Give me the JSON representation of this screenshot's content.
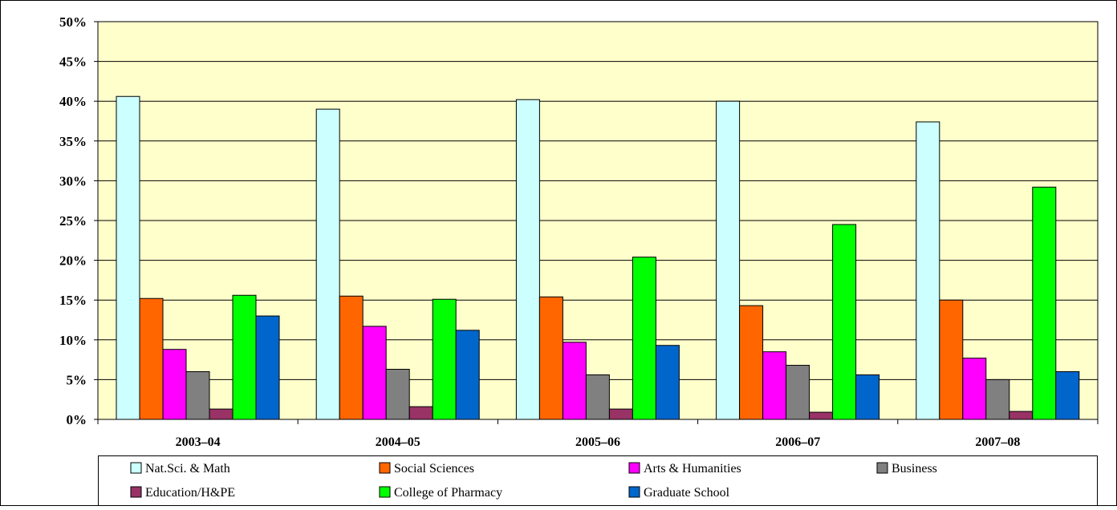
{
  "chart_data": {
    "type": "bar",
    "title": "",
    "xlabel": "",
    "ylabel": "",
    "ylim": [
      0,
      50
    ],
    "y_ticks": [
      "0%",
      "5%",
      "10%",
      "15%",
      "20%",
      "25%",
      "30%",
      "35%",
      "40%",
      "45%",
      "50%"
    ],
    "categories": [
      "2003–04",
      "2004–05",
      "2005–06",
      "2006–07",
      "2007–08"
    ],
    "grid": true,
    "legend_position": "bottom",
    "plot_background": "#FFFFCC",
    "series": [
      {
        "name": "Nat.Sci. & Math",
        "color": "#CCFFFF",
        "values": [
          40.6,
          39.0,
          40.2,
          40.0,
          37.4
        ]
      },
      {
        "name": "Social Sciences",
        "color": "#FF6600",
        "values": [
          15.2,
          15.5,
          15.4,
          14.3,
          15.0
        ]
      },
      {
        "name": "Arts & Humanities",
        "color": "#FF00FF",
        "values": [
          8.8,
          11.7,
          9.7,
          8.5,
          7.7
        ]
      },
      {
        "name": "Business",
        "color": "#808080",
        "values": [
          6.0,
          6.3,
          5.6,
          6.8,
          5.0
        ]
      },
      {
        "name": "Education/H&PE",
        "color": "#993366",
        "values": [
          1.3,
          1.6,
          1.3,
          0.9,
          1.0
        ]
      },
      {
        "name": "College of Pharmacy",
        "color": "#00FF00",
        "values": [
          15.6,
          15.1,
          20.4,
          24.5,
          29.2
        ]
      },
      {
        "name": "Graduate School",
        "color": "#0066CC",
        "values": [
          13.0,
          11.2,
          9.3,
          5.6,
          6.0
        ]
      }
    ]
  }
}
